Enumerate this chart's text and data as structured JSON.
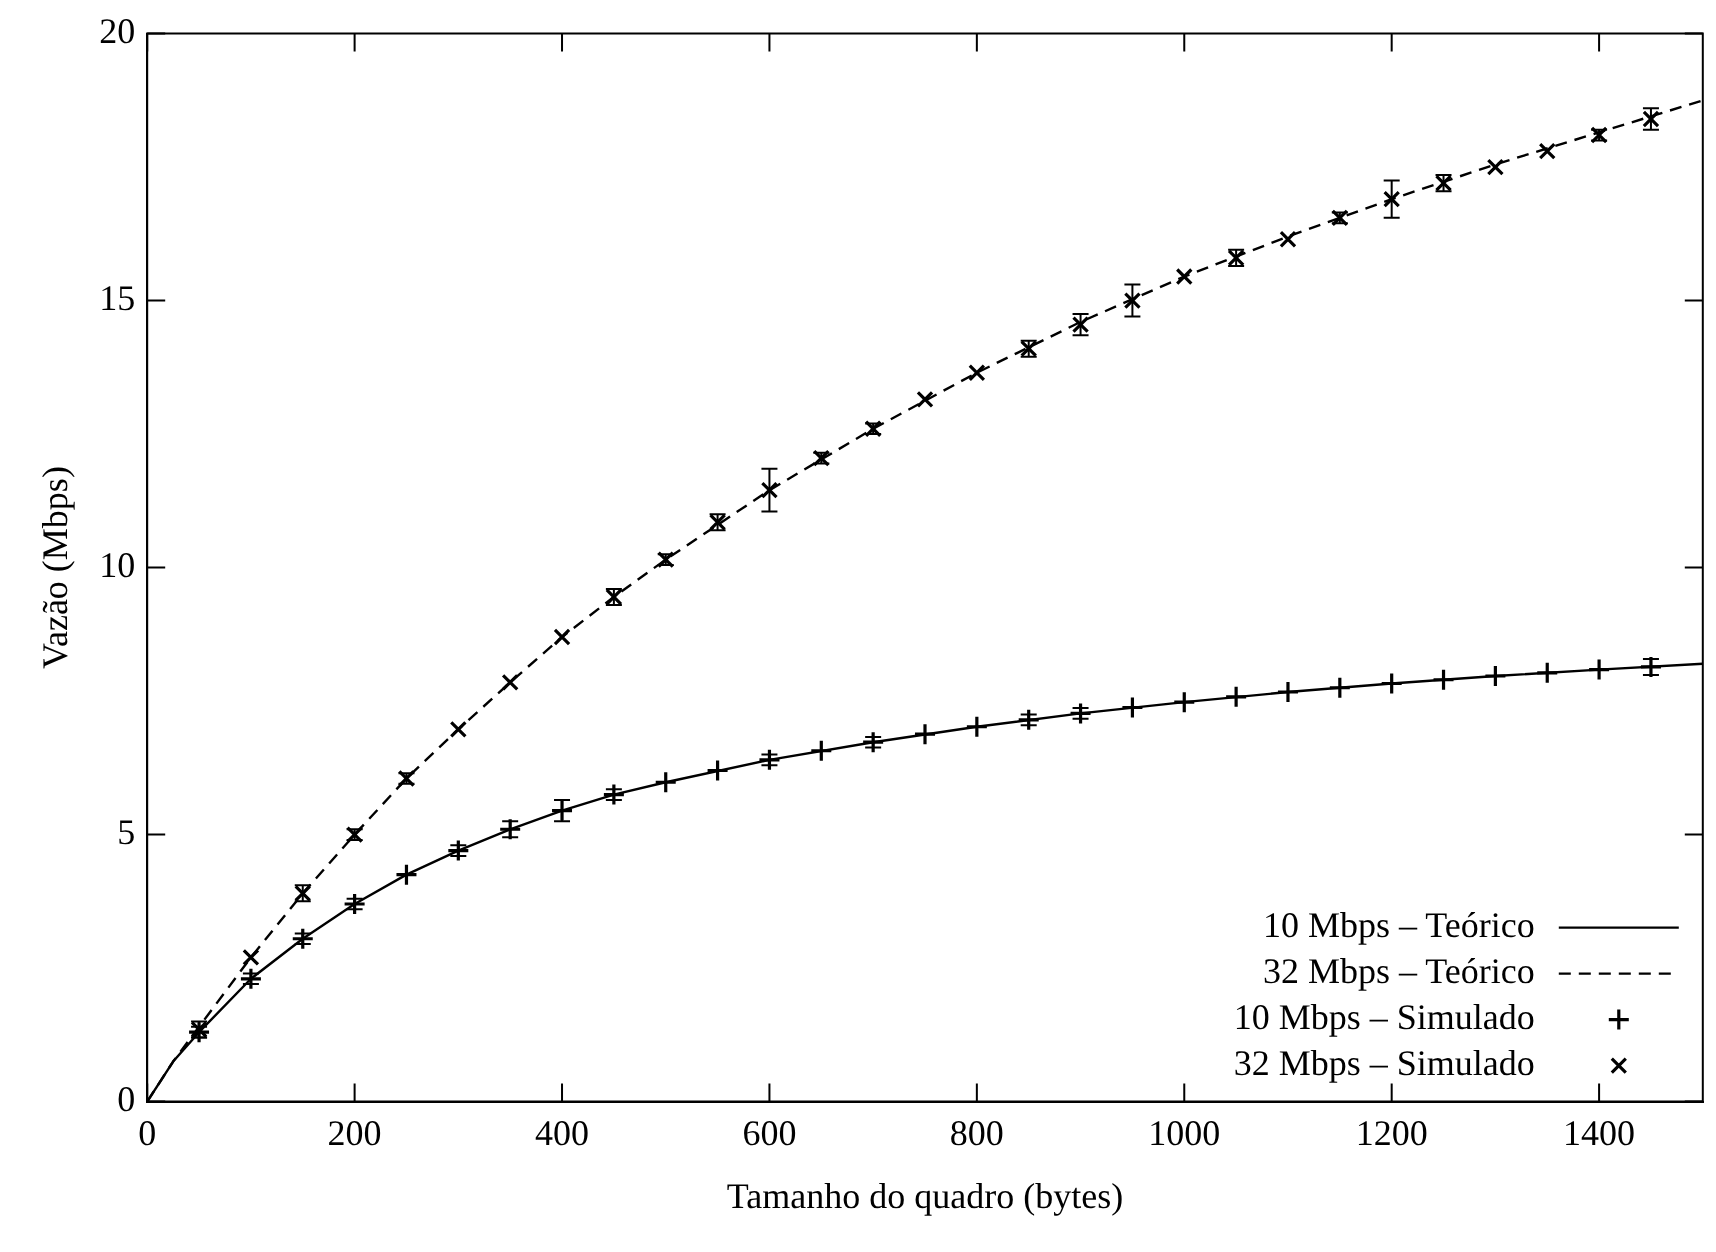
{
  "chart_data": {
    "type": "line",
    "xlabel": "Tamanho do quadro (bytes)",
    "ylabel": "Vazão (Mbps)",
    "xlim": [
      0,
      1500
    ],
    "xticks": [
      0,
      200,
      400,
      600,
      800,
      1000,
      1200,
      1400
    ],
    "ylim": [
      0,
      20
    ],
    "yticks": [
      0,
      5,
      10,
      15,
      20
    ],
    "grid": false,
    "legend": "bottom right",
    "series": [
      {
        "name": "10 Mbps – Teórico",
        "color": "#000000",
        "line_style": "solid",
        "x": [
          0,
          25,
          50,
          100,
          150,
          200,
          250,
          300,
          350,
          400,
          450,
          500,
          600,
          700,
          800,
          900,
          1000,
          1100,
          1200,
          1300,
          1400,
          1500
        ],
        "values": [
          0,
          0.75,
          1.3,
          2.3,
          3.05,
          3.7,
          4.25,
          4.7,
          5.1,
          5.45,
          5.75,
          5.98,
          6.4,
          6.73,
          7.02,
          7.27,
          7.48,
          7.67,
          7.83,
          7.97,
          8.09,
          8.2
        ]
      },
      {
        "name": "32 Mbps – Teórico",
        "color": "#000000",
        "line_style": "dashed",
        "x": [
          0,
          25,
          50,
          100,
          150,
          200,
          250,
          300,
          350,
          400,
          450,
          500,
          600,
          700,
          800,
          900,
          1000,
          1100,
          1200,
          1300,
          1400,
          1500
        ],
        "values": [
          0,
          0.75,
          1.4,
          2.7,
          3.9,
          5.0,
          6.05,
          6.97,
          7.85,
          8.7,
          9.45,
          10.15,
          11.45,
          12.6,
          13.65,
          14.6,
          15.45,
          16.2,
          16.9,
          17.55,
          18.15,
          18.75
        ]
      },
      {
        "name": "10 Mbps – Simulado",
        "type": "scatter",
        "color": "#000000",
        "marker": "cross",
        "x": [
          50,
          100,
          150,
          200,
          250,
          300,
          350,
          400,
          450,
          500,
          550,
          600,
          650,
          700,
          750,
          800,
          850,
          900,
          950,
          1000,
          1050,
          1100,
          1150,
          1200,
          1250,
          1300,
          1350,
          1400,
          1450
        ],
        "values": [
          1.3,
          2.3,
          3.05,
          3.7,
          4.25,
          4.7,
          5.1,
          5.45,
          5.75,
          5.98,
          6.2,
          6.4,
          6.57,
          6.73,
          6.88,
          7.02,
          7.15,
          7.27,
          7.38,
          7.48,
          7.58,
          7.67,
          7.75,
          7.83,
          7.9,
          7.97,
          8.03,
          8.09,
          8.14
        ],
        "errors": [
          0.1,
          0.1,
          0.1,
          0.1,
          null,
          0.1,
          0.15,
          0.2,
          0.1,
          null,
          null,
          0.1,
          null,
          0.1,
          null,
          null,
          0.1,
          0.1,
          null,
          null,
          null,
          null,
          null,
          null,
          null,
          null,
          null,
          null,
          0.15
        ]
      },
      {
        "name": "32 Mbps – Simulado",
        "type": "scatter",
        "color": "#000000",
        "marker": "x",
        "x": [
          50,
          100,
          150,
          200,
          250,
          300,
          350,
          400,
          450,
          500,
          550,
          600,
          650,
          700,
          750,
          800,
          850,
          900,
          950,
          1000,
          1050,
          1100,
          1150,
          1200,
          1250,
          1300,
          1350,
          1400,
          1450
        ],
        "values": [
          1.35,
          2.7,
          3.9,
          5.0,
          6.05,
          6.97,
          7.85,
          8.7,
          9.45,
          10.15,
          10.85,
          11.45,
          12.05,
          12.6,
          13.15,
          13.65,
          14.1,
          14.55,
          15.0,
          15.45,
          15.8,
          16.15,
          16.55,
          16.9,
          17.2,
          17.5,
          17.8,
          18.1,
          18.4
        ],
        "errors": [
          0.15,
          null,
          0.15,
          0.1,
          0.1,
          null,
          null,
          null,
          0.15,
          0.1,
          0.15,
          0.4,
          0.1,
          0.1,
          null,
          null,
          0.15,
          0.2,
          0.3,
          null,
          0.15,
          null,
          0.1,
          0.35,
          0.15,
          null,
          null,
          0.1,
          0.2
        ]
      }
    ]
  }
}
